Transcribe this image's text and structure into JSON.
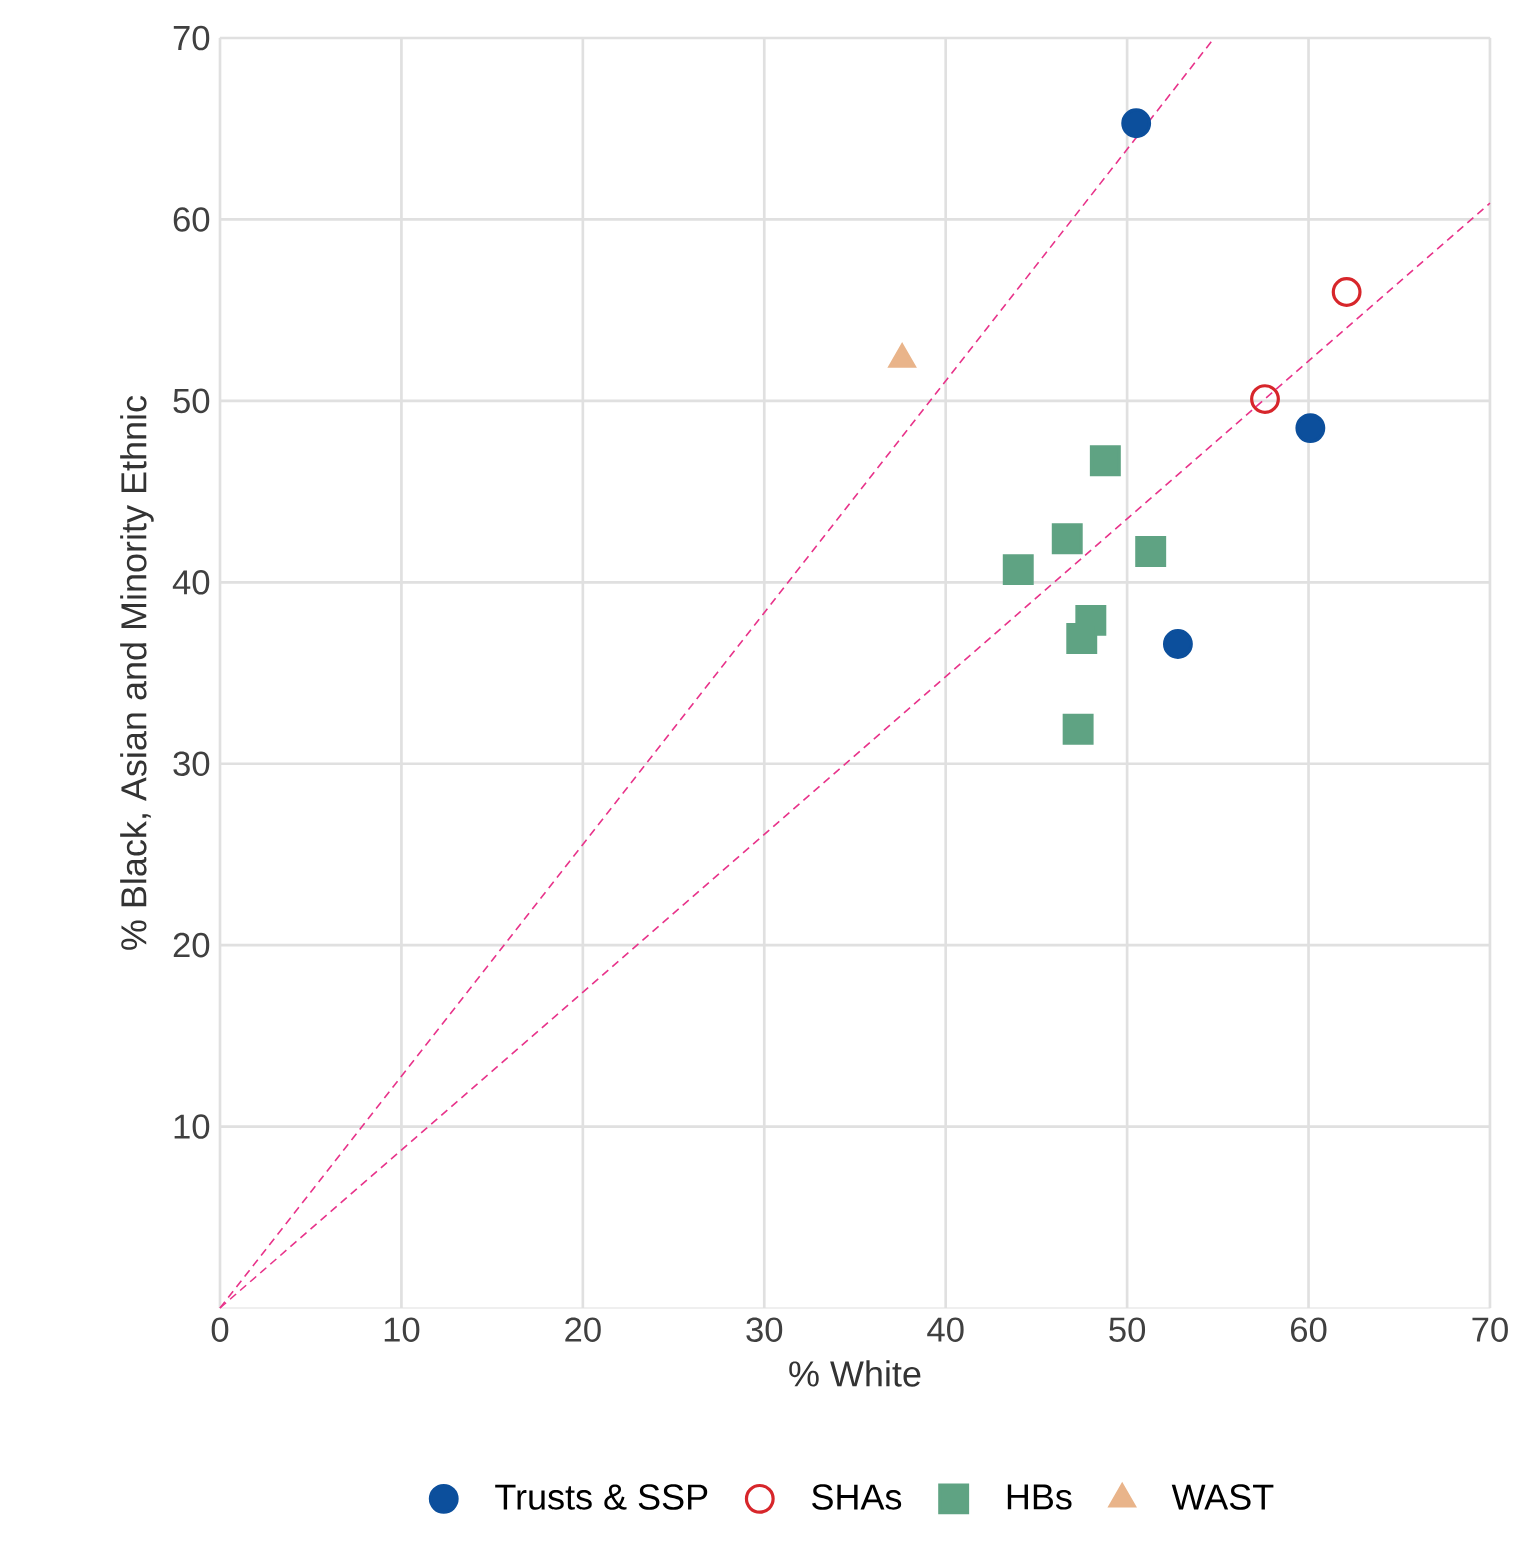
{
  "chart_data": {
    "type": "scatter",
    "xlabel": "% White",
    "ylabel": "% Black, Asian and Minority Ethnic",
    "xlim": [
      0,
      70
    ],
    "ylim": [
      0,
      70
    ],
    "xticks": [
      0,
      10,
      20,
      30,
      40,
      50,
      60,
      70
    ],
    "yticks": [
      10,
      20,
      30,
      40,
      50,
      60,
      70
    ],
    "grid": true,
    "legend": "bottom",
    "series": [
      {
        "name": "Trusts & SSP",
        "color": "#0c4f9c",
        "marker": "circle",
        "x": [
          50.5,
          60.1,
          52.8
        ],
        "values": [
          65.3,
          48.5,
          36.6
        ]
      },
      {
        "name": "SHAs",
        "color": "#d7262b",
        "marker": "open circle",
        "x": [
          57.6,
          62.1
        ],
        "values": [
          50.1,
          56.0
        ]
      },
      {
        "name": "HBs",
        "color": "#5fa383",
        "marker": "square",
        "x": [
          48.8,
          46.7,
          44.0,
          51.3,
          48.0,
          47.5,
          47.3
        ],
        "values": [
          46.7,
          42.4,
          40.7,
          41.7,
          37.9,
          36.9,
          31.9
        ]
      },
      {
        "name": "WAST",
        "color": "#e9b48a",
        "marker": "triangle",
        "x": [
          37.6
        ],
        "values": [
          52.3
        ]
      },
      {
        "type": "line",
        "color": "#e8338a",
        "line_style": "dashed",
        "marker": "none",
        "x": [
          0,
          54.8
        ],
        "values": [
          0,
          70
        ]
      },
      {
        "type": "line",
        "color": "#e8338a",
        "line_style": "dashed",
        "marker": "none",
        "x": [
          0,
          70
        ],
        "values": [
          0,
          60.9
        ]
      }
    ]
  }
}
